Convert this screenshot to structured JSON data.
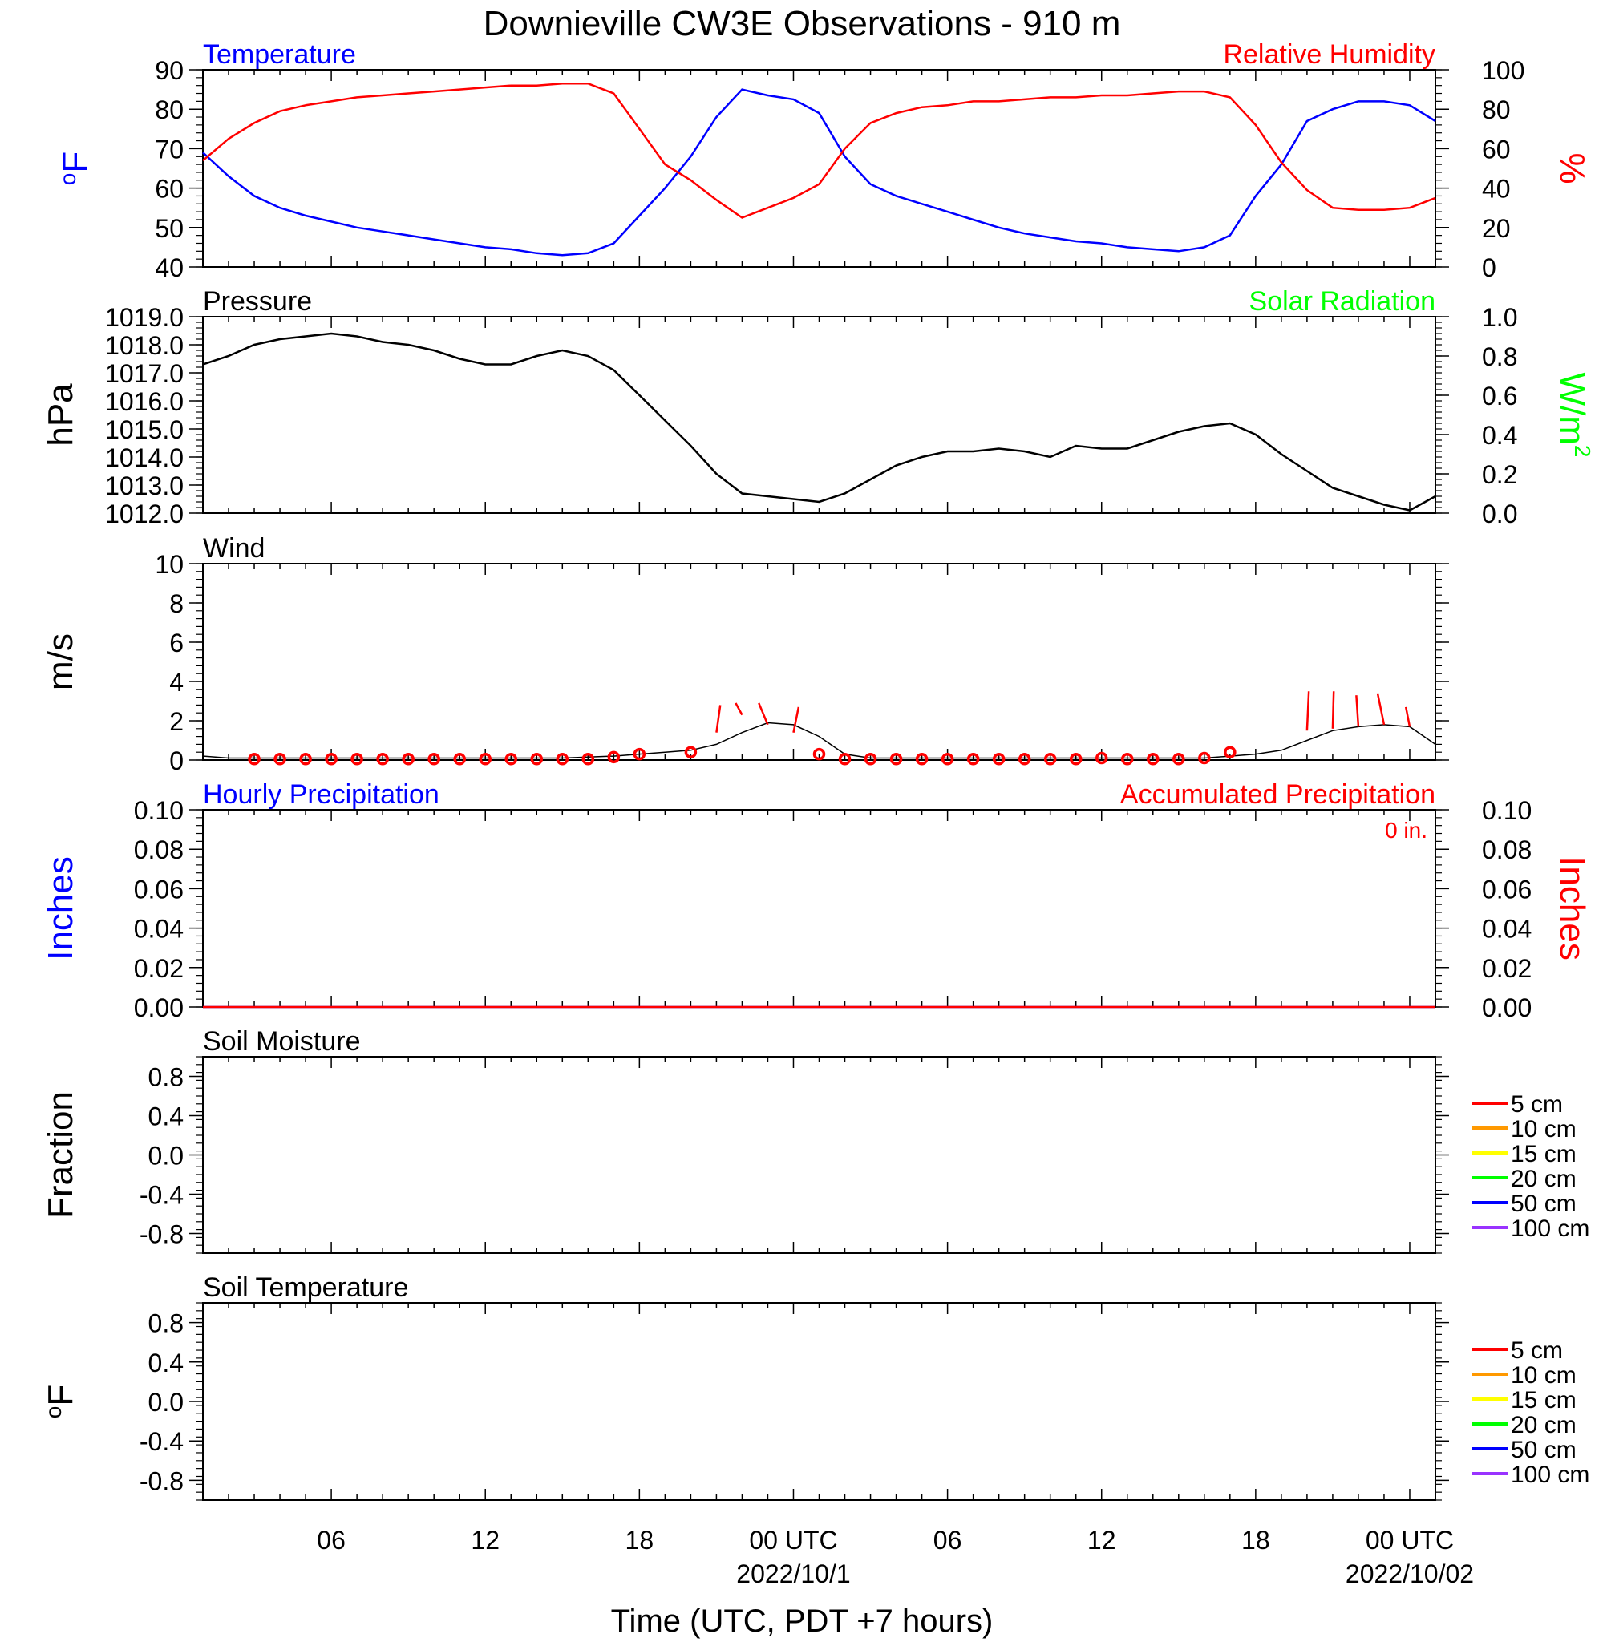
{
  "title": "Downieville CW3E Observations - 910 m",
  "xlabel": "Time (UTC, PDT +7 hours)",
  "x_axis": {
    "range_hours": [
      0,
      48
    ],
    "tick_labels": [
      {
        "h": 5,
        "text": "06"
      },
      {
        "h": 11,
        "text": "12"
      },
      {
        "h": 17,
        "text": "18"
      },
      {
        "h": 23,
        "text": "00 UTC",
        "sub": "2022/10/1"
      },
      {
        "h": 29,
        "text": "06"
      },
      {
        "h": 35,
        "text": "12"
      },
      {
        "h": 41,
        "text": "18"
      },
      {
        "h": 47,
        "text": "00 UTC",
        "sub": "2022/10/02"
      }
    ]
  },
  "colors": {
    "temperature": "#0000ff",
    "relative_humidity": "#ff0000",
    "pressure": "#000000",
    "solar_radiation": "#00ff00",
    "wind": "#000000",
    "wind_marker": "#ff0000",
    "hourly_precip": "#0000ff",
    "accum_precip": "#ff0000"
  },
  "chart_data": [
    {
      "id": "temp_rh",
      "type": "line",
      "left_title": "Temperature",
      "right_title": "Relative Humidity",
      "ylabel_left": "oF",
      "ylabel_right": "%",
      "ylim_left": [
        40,
        90
      ],
      "ylim_right": [
        0,
        100
      ],
      "yticks_left": [
        40,
        50,
        60,
        70,
        80,
        90
      ],
      "yticks_right": [
        0,
        20,
        40,
        60,
        80,
        100
      ],
      "series": [
        {
          "name": "Temperature",
          "axis": "left",
          "x": [
            0,
            1,
            2,
            3,
            4,
            5,
            6,
            7,
            8,
            9,
            10,
            11,
            12,
            13,
            14,
            15,
            16,
            17,
            18,
            19,
            20,
            21,
            22,
            23,
            24,
            25,
            26,
            27,
            28,
            29,
            30,
            31,
            32,
            33,
            34,
            35,
            36,
            37,
            38,
            39,
            40,
            41,
            42,
            43,
            44,
            45,
            46,
            47,
            48
          ],
          "y": [
            69,
            63,
            58,
            55,
            53,
            51.5,
            50,
            49,
            48,
            47,
            46,
            45,
            44.5,
            43.5,
            43,
            43.5,
            46,
            53,
            60,
            68,
            78,
            85,
            83.5,
            82.5,
            79,
            68,
            61,
            58,
            56,
            54,
            52,
            50,
            48.5,
            47.5,
            46.5,
            46,
            45,
            44.5,
            44,
            45,
            48,
            58,
            66,
            77,
            80,
            82,
            82,
            81,
            77
          ]
        },
        {
          "name": "Relative Humidity",
          "axis": "right",
          "x": [
            0,
            1,
            2,
            3,
            4,
            5,
            6,
            7,
            8,
            9,
            10,
            11,
            12,
            13,
            14,
            15,
            16,
            17,
            18,
            19,
            20,
            21,
            22,
            23,
            24,
            25,
            26,
            27,
            28,
            29,
            30,
            31,
            32,
            33,
            34,
            35,
            36,
            37,
            38,
            39,
            40,
            41,
            42,
            43,
            44,
            45,
            46,
            47,
            48
          ],
          "y": [
            54,
            65,
            73,
            79,
            82,
            84,
            86,
            87,
            88,
            89,
            90,
            91,
            92,
            92,
            93,
            93,
            88,
            70,
            52,
            44,
            34,
            25,
            30,
            35,
            42,
            60,
            73,
            78,
            81,
            82,
            84,
            84,
            85,
            86,
            86,
            87,
            87,
            88,
            89,
            89,
            86,
            72,
            53,
            39,
            30,
            29,
            29,
            30,
            35
          ]
        }
      ]
    },
    {
      "id": "pressure_solar",
      "type": "line",
      "left_title": "Pressure",
      "right_title": "Solar Radiation",
      "ylabel_left": "hPa",
      "ylabel_right": "W/m",
      "ylabel_right_sup": "2",
      "ylim_left": [
        1012.0,
        1019.0
      ],
      "ylim_right": [
        0.0,
        1.0
      ],
      "yticks_left": [
        "1012.0",
        "1013.0",
        "1014.0",
        "1015.0",
        "1016.0",
        "1017.0",
        "1018.0",
        "1019.0"
      ],
      "yticks_right": [
        "0.0",
        "0.2",
        "0.4",
        "0.6",
        "0.8",
        "1.0"
      ],
      "series": [
        {
          "name": "Pressure",
          "axis": "left",
          "x": [
            0,
            1,
            2,
            3,
            4,
            5,
            6,
            7,
            8,
            9,
            10,
            11,
            12,
            13,
            14,
            15,
            16,
            17,
            18,
            19,
            20,
            21,
            22,
            23,
            24,
            25,
            26,
            27,
            28,
            29,
            30,
            31,
            32,
            33,
            34,
            35,
            36,
            37,
            38,
            39,
            40,
            41,
            42,
            43,
            44,
            45,
            46,
            47,
            48
          ],
          "y": [
            1017.3,
            1017.6,
            1018.0,
            1018.2,
            1018.3,
            1018.4,
            1018.3,
            1018.1,
            1018.0,
            1017.8,
            1017.5,
            1017.3,
            1017.3,
            1017.6,
            1017.8,
            1017.6,
            1017.1,
            1016.2,
            1015.3,
            1014.4,
            1013.4,
            1012.7,
            1012.6,
            1012.5,
            1012.4,
            1012.7,
            1013.2,
            1013.7,
            1014.0,
            1014.2,
            1014.2,
            1014.3,
            1014.2,
            1014.0,
            1014.4,
            1014.3,
            1014.3,
            1014.6,
            1014.9,
            1015.1,
            1015.2,
            1014.8,
            1014.1,
            1013.5,
            1012.9,
            1012.6,
            1012.3,
            1012.1,
            1012.6
          ]
        }
      ]
    },
    {
      "id": "wind",
      "type": "line",
      "left_title": "Wind",
      "ylabel_left": "m/s",
      "ylim_left": [
        0,
        10
      ],
      "yticks_left": [
        0,
        2,
        4,
        6,
        8,
        10
      ],
      "series": [
        {
          "name": "Wind",
          "x": [
            0,
            1,
            2,
            3,
            4,
            5,
            6,
            7,
            8,
            9,
            10,
            11,
            12,
            13,
            14,
            15,
            16,
            17,
            18,
            19,
            20,
            21,
            22,
            23,
            24,
            25,
            26,
            27,
            28,
            29,
            30,
            31,
            32,
            33,
            34,
            35,
            36,
            37,
            38,
            39,
            40,
            41,
            42,
            43,
            44,
            45,
            46,
            47,
            48
          ],
          "y": [
            0.2,
            0.1,
            0.1,
            0.1,
            0.1,
            0.1,
            0.1,
            0.1,
            0.1,
            0.1,
            0.1,
            0.1,
            0.1,
            0.1,
            0.1,
            0.15,
            0.2,
            0.3,
            0.4,
            0.5,
            0.8,
            1.4,
            1.9,
            1.8,
            1.2,
            0.3,
            0.1,
            0.1,
            0.1,
            0.1,
            0.1,
            0.1,
            0.1,
            0.1,
            0.1,
            0.1,
            0.1,
            0.1,
            0.1,
            0.1,
            0.2,
            0.3,
            0.5,
            1.0,
            1.5,
            1.7,
            1.8,
            1.7,
            0.8
          ]
        }
      ],
      "markers": {
        "x": [
          2,
          3,
          4,
          5,
          6,
          7,
          8,
          9,
          10,
          11,
          12,
          13,
          14,
          15,
          16,
          17,
          19,
          24,
          25,
          26,
          27,
          28,
          29,
          30,
          31,
          32,
          33,
          34,
          35,
          36,
          37,
          38,
          39,
          40
        ],
        "y": [
          0.05,
          0.05,
          0.05,
          0.05,
          0.05,
          0.05,
          0.05,
          0.05,
          0.05,
          0.05,
          0.05,
          0.05,
          0.05,
          0.05,
          0.15,
          0.3,
          0.4,
          0.3,
          0.05,
          0.05,
          0.05,
          0.05,
          0.05,
          0.05,
          0.05,
          0.05,
          0.05,
          0.05,
          0.1,
          0.05,
          0.05,
          0.05,
          0.1,
          0.4
        ]
      },
      "barbs": [
        {
          "x": 20,
          "y": 1.4,
          "to_y": 2.8,
          "dx": 0.15
        },
        {
          "x": 21,
          "y": 2.3,
          "to_y": 2.9,
          "dx": -0.25
        },
        {
          "x": 22,
          "y": 1.8,
          "to_y": 2.9,
          "dx": -0.35
        },
        {
          "x": 23,
          "y": 1.4,
          "to_y": 2.7,
          "dx": 0.2
        },
        {
          "x": 43,
          "y": 1.5,
          "to_y": 3.5,
          "dx": 0.07
        },
        {
          "x": 44,
          "y": 1.6,
          "to_y": 3.5,
          "dx": 0.04
        },
        {
          "x": 45,
          "y": 1.7,
          "to_y": 3.3,
          "dx": -0.08
        },
        {
          "x": 46,
          "y": 1.8,
          "to_y": 3.4,
          "dx": -0.25
        },
        {
          "x": 47,
          "y": 1.7,
          "to_y": 2.7,
          "dx": -0.15
        }
      ]
    },
    {
      "id": "precip",
      "type": "line",
      "left_title": "Hourly Precipitation",
      "right_title": "Accumulated Precipitation",
      "annotation": "0 in.",
      "ylabel_left": "Inches",
      "ylabel_right": "Inches",
      "ylim_left": [
        0.0,
        0.1
      ],
      "ylim_right": [
        0.0,
        0.1
      ],
      "yticks_left": [
        "0.00",
        "0.02",
        "0.04",
        "0.06",
        "0.08",
        "0.10"
      ],
      "yticks_right": [
        "0.00",
        "0.02",
        "0.04",
        "0.06",
        "0.08",
        "0.10"
      ],
      "series": [
        {
          "name": "Hourly Precipitation",
          "axis": "left",
          "x": [
            0,
            48
          ],
          "y": [
            0,
            0
          ]
        },
        {
          "name": "Accumulated Precipitation",
          "axis": "right",
          "x": [
            0,
            48
          ],
          "y": [
            0,
            0
          ]
        }
      ]
    },
    {
      "id": "soil_moisture",
      "type": "line",
      "left_title": "Soil Moisture",
      "ylabel_left": "Fraction",
      "ylim_left": [
        -1.0,
        1.0
      ],
      "yticks_left": [
        "-0.8",
        "-0.4",
        "0.0",
        "0.4",
        "0.8"
      ],
      "legend": [
        "5 cm",
        "10 cm",
        "15 cm",
        "20 cm",
        "50 cm",
        "100 cm"
      ],
      "series": []
    },
    {
      "id": "soil_temperature",
      "type": "line",
      "left_title": "Soil Temperature",
      "ylabel_left": "oF",
      "ylim_left": [
        -1.0,
        1.0
      ],
      "yticks_left": [
        "-0.8",
        "-0.4",
        "0.0",
        "0.4",
        "0.8"
      ],
      "legend": [
        "5 cm",
        "10 cm",
        "15 cm",
        "20 cm",
        "50 cm",
        "100 cm"
      ],
      "series": []
    }
  ],
  "legend_colors": [
    "#ff0000",
    "#ff9900",
    "#ffff00",
    "#00ff00",
    "#0000ff",
    "#9933ff"
  ]
}
